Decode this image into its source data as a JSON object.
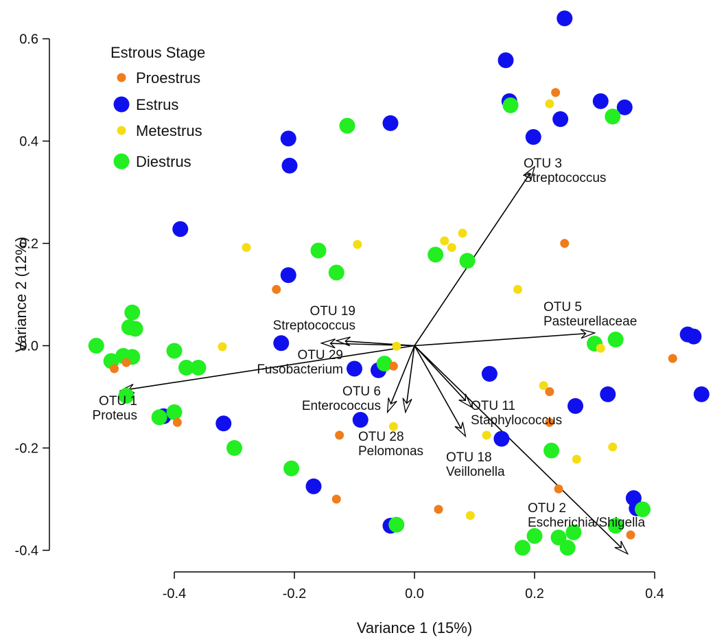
{
  "chart_data": {
    "type": "scatter",
    "title": "",
    "xlabel": "Variance 1 (15%)",
    "ylabel": "Variance 2 (12%)",
    "xlim": [
      -0.535,
      0.485
    ],
    "ylim": [
      -0.44,
      0.645
    ],
    "x_ticks": [
      -0.4,
      -0.2,
      0.0,
      0.2,
      0.4
    ],
    "y_ticks": [
      -0.4,
      -0.2,
      0.0,
      0.2,
      0.4,
      0.6
    ],
    "x_tick_labels": [
      "-0.4",
      "-0.2",
      "0.0",
      "0.2",
      "0.4"
    ],
    "y_tick_labels": [
      "-0.4",
      "-0.2",
      "0.0",
      "0.2",
      "0.4",
      "0.6"
    ],
    "legend": {
      "title": "Estrous Stage",
      "placement": "top-left",
      "entries": [
        {
          "label": "Proestrus",
          "series": 0
        },
        {
          "label": "Estrus",
          "series": 1
        },
        {
          "label": "Metestrus",
          "series": 2
        },
        {
          "label": "Diestrus",
          "series": 3
        }
      ]
    },
    "series": [
      {
        "name": "Proestrus",
        "color": "#f07d1c",
        "marker_size": "small",
        "points": [
          [
            0.235,
            0.495
          ],
          [
            0.25,
            0.2
          ],
          [
            -0.23,
            0.11
          ],
          [
            0.43,
            -0.025
          ],
          [
            -0.5,
            -0.045
          ],
          [
            -0.48,
            -0.033
          ],
          [
            -0.035,
            -0.04
          ],
          [
            0.225,
            -0.09
          ],
          [
            -0.395,
            -0.15
          ],
          [
            0.225,
            -0.15
          ],
          [
            -0.125,
            -0.175
          ],
          [
            0.24,
            -0.28
          ],
          [
            -0.13,
            -0.3
          ],
          [
            0.04,
            -0.32
          ],
          [
            0.36,
            -0.37
          ]
        ]
      },
      {
        "name": "Estrus",
        "color": "#1010ee",
        "marker_size": "large",
        "points": [
          [
            0.25,
            0.64
          ],
          [
            0.152,
            0.558
          ],
          [
            0.158,
            0.478
          ],
          [
            0.31,
            0.478
          ],
          [
            0.35,
            0.466
          ],
          [
            0.243,
            0.443
          ],
          [
            -0.04,
            0.435
          ],
          [
            0.198,
            0.408
          ],
          [
            -0.21,
            0.405
          ],
          [
            -0.208,
            0.352
          ],
          [
            -0.39,
            0.228
          ],
          [
            -0.21,
            0.138
          ],
          [
            -0.222,
            0.005
          ],
          [
            0.455,
            0.022
          ],
          [
            0.465,
            0.018
          ],
          [
            0.478,
            -0.095
          ],
          [
            -0.1,
            -0.045
          ],
          [
            -0.06,
            -0.048
          ],
          [
            0.125,
            -0.055
          ],
          [
            0.268,
            -0.118
          ],
          [
            0.322,
            -0.095
          ],
          [
            -0.418,
            -0.138
          ],
          [
            -0.318,
            -0.152
          ],
          [
            -0.09,
            -0.145
          ],
          [
            0.145,
            -0.182
          ],
          [
            -0.168,
            -0.275
          ],
          [
            0.365,
            -0.298
          ],
          [
            0.37,
            -0.318
          ],
          [
            -0.04,
            -0.352
          ]
        ]
      },
      {
        "name": "Metestrus",
        "color": "#f4dd14",
        "marker_size": "small",
        "points": [
          [
            0.225,
            0.473
          ],
          [
            -0.28,
            0.192
          ],
          [
            -0.095,
            0.198
          ],
          [
            0.05,
            0.205
          ],
          [
            0.062,
            0.192
          ],
          [
            0.08,
            0.22
          ],
          [
            0.172,
            0.11
          ],
          [
            -0.32,
            -0.002
          ],
          [
            -0.03,
            -0.001
          ],
          [
            0.31,
            -0.005
          ],
          [
            0.215,
            -0.078
          ],
          [
            -0.035,
            -0.158
          ],
          [
            0.12,
            -0.175
          ],
          [
            0.27,
            -0.222
          ],
          [
            0.33,
            -0.198
          ],
          [
            0.093,
            -0.332
          ]
        ]
      },
      {
        "name": "Diestrus",
        "color": "#22ee22",
        "marker_size": "large",
        "points": [
          [
            0.16,
            0.47
          ],
          [
            0.33,
            0.448
          ],
          [
            -0.112,
            0.43
          ],
          [
            -0.16,
            0.186
          ],
          [
            -0.13,
            0.143
          ],
          [
            0.035,
            0.178
          ],
          [
            0.088,
            0.166
          ],
          [
            -0.47,
            0.065
          ],
          [
            -0.475,
            0.036
          ],
          [
            -0.465,
            0.033
          ],
          [
            -0.53,
            0.0
          ],
          [
            -0.505,
            -0.03
          ],
          [
            -0.485,
            -0.02
          ],
          [
            -0.47,
            -0.022
          ],
          [
            -0.4,
            -0.01
          ],
          [
            -0.38,
            -0.043
          ],
          [
            -0.36,
            -0.043
          ],
          [
            -0.05,
            -0.035
          ],
          [
            0.3,
            0.004
          ],
          [
            0.335,
            0.012
          ],
          [
            -0.48,
            -0.098
          ],
          [
            -0.425,
            -0.14
          ],
          [
            -0.4,
            -0.13
          ],
          [
            -0.3,
            -0.2
          ],
          [
            -0.205,
            -0.24
          ],
          [
            0.228,
            -0.205
          ],
          [
            0.38,
            -0.32
          ],
          [
            -0.03,
            -0.35
          ],
          [
            0.335,
            -0.352
          ],
          [
            0.18,
            -0.395
          ],
          [
            0.2,
            -0.372
          ],
          [
            0.24,
            -0.375
          ],
          [
            0.255,
            -0.395
          ],
          [
            0.265,
            -0.365
          ]
        ]
      }
    ],
    "vectors": [
      {
        "label": [
          "OTU 3",
          "Streptococcus"
        ],
        "end": [
          0.2,
          0.35
        ]
      },
      {
        "label": [
          "OTU 5",
          "Pasteurellaceae"
        ],
        "end": [
          0.3,
          0.025
        ]
      },
      {
        "label": [
          "OTU 19",
          "Streptococcus"
        ],
        "end": [
          -0.13,
          0.01
        ]
      },
      {
        "label": [
          "OTU 29",
          "Fusobacterium"
        ],
        "end": [
          -0.155,
          0.005
        ]
      },
      {
        "label": [
          "OTU 1",
          "Proteus"
        ],
        "end": [
          -0.49,
          -0.088
        ]
      },
      {
        "label": [
          "OTU 6",
          "Enterococcus"
        ],
        "end": [
          -0.045,
          -0.13
        ]
      },
      {
        "label": [
          "OTU 28",
          "Pelomonas"
        ],
        "end": [
          -0.015,
          -0.13
        ]
      },
      {
        "label": [
          "OTU 11",
          "Staphylococcus"
        ],
        "end": [
          0.095,
          -0.12
        ]
      },
      {
        "label": [
          "OTU 18",
          "Veillonella"
        ],
        "end": [
          0.085,
          -0.177
        ]
      },
      {
        "label": [
          "OTU 2",
          "Escherichia/Shigella"
        ],
        "end": [
          0.355,
          -0.407
        ]
      }
    ]
  }
}
